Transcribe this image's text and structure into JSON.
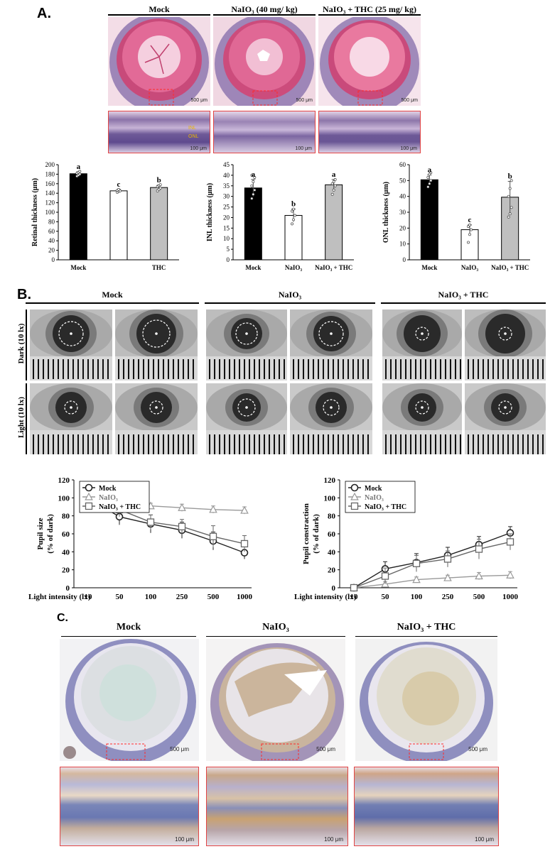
{
  "panel_a": {
    "letter": "A.",
    "groups": [
      "Mock",
      "NaIO₃ (40 mg/ kg)",
      "NaIO₃ + THC (25 mg/ kg)"
    ],
    "scale_labels": [
      "500 μm",
      "500 μm",
      "500 μm"
    ],
    "inset_scale_labels": [
      "100 μm",
      "100 μm",
      "100 μm"
    ],
    "layer_labels": [
      "INL",
      "ONL"
    ]
  },
  "panel_b": {
    "letter": "B.",
    "groups": [
      "Mock",
      "NaIO₃",
      "NaIO₃ + THC"
    ],
    "row_labels": [
      "Dark (10 lx)",
      "Light (10 lx)"
    ]
  },
  "panel_c": {
    "letter": "C.",
    "groups": [
      "Mock",
      "NaIO₃",
      "NaIO₃ + THC"
    ],
    "scale_labels": [
      "500 μm",
      "500 μm",
      "500 μm"
    ],
    "inset_scale_labels": [
      "100 μm",
      "100 μm",
      "100 μm"
    ]
  },
  "chart_data": [
    {
      "type": "bar",
      "categories": [
        "Mock",
        "",
        "THC"
      ],
      "values": [
        181,
        145,
        152
      ],
      "errors": [
        4,
        3,
        5
      ],
      "letters": [
        "a",
        "c",
        "b"
      ],
      "colors": [
        "#000000",
        "#ffffff",
        "#bfbfbf"
      ],
      "ylabel": "Retinal thickness (μm)",
      "ylim": [
        0,
        200
      ],
      "yticks": [
        0,
        20,
        40,
        60,
        80,
        100,
        120,
        140,
        160,
        180,
        200
      ],
      "points": [
        [
          176,
          178,
          180,
          182,
          184,
          186
        ],
        [
          142,
          144,
          145,
          146,
          148
        ],
        [
          145,
          148,
          151,
          154,
          156,
          158
        ]
      ]
    },
    {
      "type": "bar",
      "categories": [
        "Mock",
        "NaIO₃",
        "NaIO₃ + THC"
      ],
      "values": [
        34,
        21,
        35.5
      ],
      "errors": [
        4,
        3,
        2.5
      ],
      "letters": [
        "a",
        "b",
        "a"
      ],
      "colors": [
        "#000000",
        "#ffffff",
        "#bfbfbf"
      ],
      "ylabel": "INL thickness (μm)",
      "ylim": [
        0,
        45
      ],
      "yticks": [
        0,
        5,
        10,
        15,
        20,
        25,
        30,
        35,
        40,
        45
      ],
      "points": [
        [
          29,
          31,
          33,
          35,
          37,
          39,
          40
        ],
        [
          17,
          19,
          21,
          23,
          24
        ],
        [
          31,
          33,
          35,
          36,
          37,
          38
        ]
      ]
    },
    {
      "type": "bar",
      "categories": [
        "Mock",
        "NaIO₃",
        "NaIO₃ + THC"
      ],
      "values": [
        50.5,
        19,
        39.5
      ],
      "errors": [
        3,
        3,
        10
      ],
      "letters": [
        "a",
        "c",
        "b"
      ],
      "colors": [
        "#000000",
        "#ffffff",
        "#bfbfbf"
      ],
      "ylabel": "ONL thickness (μm)",
      "ylim": [
        0,
        60
      ],
      "yticks": [
        0,
        10,
        20,
        30,
        40,
        50,
        60
      ],
      "points": [
        [
          46,
          48,
          50,
          52,
          54,
          55
        ],
        [
          11,
          16,
          19,
          21,
          22
        ],
        [
          27,
          29,
          33,
          40,
          45,
          50
        ]
      ]
    },
    {
      "type": "line",
      "x": [
        "10",
        "50",
        "100",
        "250",
        "500",
        "1000"
      ],
      "xlabel": "Light intensity (lx)",
      "ylabel": "Pupil size\n(% of dark)",
      "ylim": [
        0,
        120
      ],
      "yticks": [
        0,
        20,
        40,
        60,
        80,
        100,
        120
      ],
      "legend": "top-left",
      "series": [
        {
          "name": "Mock",
          "marker": "circle",
          "color": "#222222",
          "values": [
            100,
            79,
            71,
            64,
            52,
            39
          ],
          "errors": [
            0,
            9,
            10,
            9,
            10,
            7
          ]
        },
        {
          "name": "NaIO₃",
          "marker": "triangle",
          "color": "#999999",
          "values": [
            100,
            96,
            91,
            89,
            87,
            86
          ],
          "errors": [
            0,
            3,
            3,
            4,
            4,
            4
          ]
        },
        {
          "name": "NaIO₃ + THC",
          "marker": "square",
          "color": "#666666",
          "values": [
            100,
            87,
            73,
            68,
            57,
            49
          ],
          "errors": [
            0,
            8,
            8,
            8,
            12,
            9
          ]
        }
      ]
    },
    {
      "type": "line",
      "x": [
        "10",
        "50",
        "100",
        "250",
        "500",
        "1000"
      ],
      "xlabel": "Light intensity (lx)",
      "ylabel": "Pupil constraction\n(% of dark)",
      "ylim": [
        0,
        120
      ],
      "yticks": [
        0,
        20,
        40,
        60,
        80,
        100,
        120
      ],
      "legend": "top-left",
      "series": [
        {
          "name": "Mock",
          "marker": "circle",
          "color": "#222222",
          "values": [
            0,
            21,
            28,
            36,
            48,
            61
          ],
          "errors": [
            0,
            8,
            10,
            9,
            9,
            7
          ]
        },
        {
          "name": "NaIO₃",
          "marker": "triangle",
          "color": "#999999",
          "values": [
            0,
            4,
            9,
            11,
            13,
            14
          ],
          "errors": [
            0,
            3,
            3,
            3,
            4,
            4
          ]
        },
        {
          "name": "NaIO₃ + THC",
          "marker": "square",
          "color": "#666666",
          "values": [
            0,
            13,
            27,
            32,
            43,
            51
          ],
          "errors": [
            0,
            9,
            9,
            9,
            11,
            9
          ]
        }
      ]
    }
  ]
}
